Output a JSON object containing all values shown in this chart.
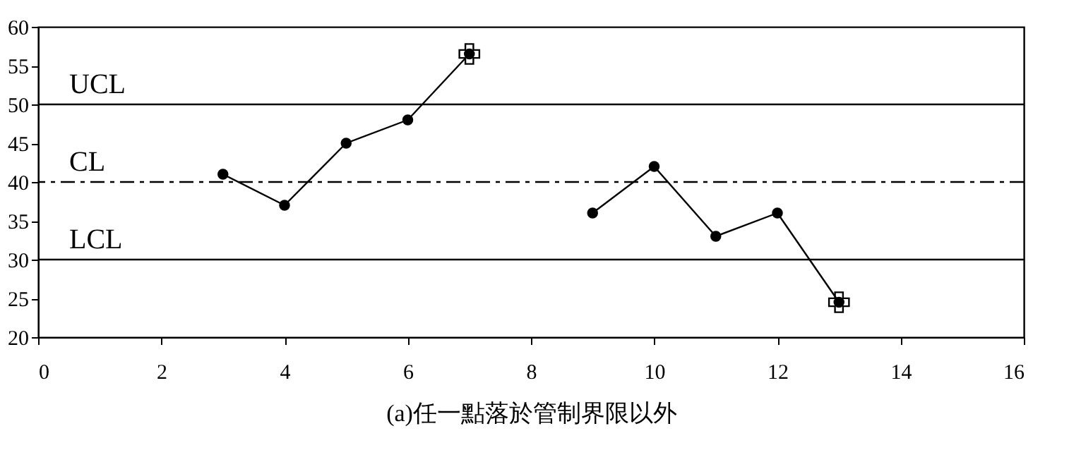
{
  "chart_data": {
    "type": "line",
    "xlabel": "(a)任一點落於管制界限以外",
    "x": [
      3,
      4,
      5,
      6,
      7,
      8,
      9,
      10,
      11,
      12,
      13
    ],
    "series": [
      {
        "color": "#000000",
        "marker": "circle",
        "values": [
          41,
          37,
          45,
          48,
          56.5,
          null,
          36,
          42,
          33,
          36,
          24.5
        ]
      },
      {
        "type": "scatter",
        "color": "#000000",
        "marker": "cross",
        "x": [
          7,
          13
        ],
        "values": [
          56.5,
          24.5
        ]
      }
    ],
    "xlim": [
      0,
      16
    ],
    "xticks": [
      0,
      2,
      4,
      6,
      8,
      10,
      12,
      14,
      16
    ],
    "ylim": [
      20,
      60
    ],
    "yticks": [
      20,
      25,
      30,
      35,
      40,
      45,
      50,
      55,
      60
    ],
    "ref_lines": [
      {
        "axis": "y",
        "value": 50,
        "label": "UCL",
        "line_style": "solid",
        "color": "#000000"
      },
      {
        "axis": "y",
        "value": 40,
        "label": "CL",
        "line_style": "dashdot",
        "color": "#000000"
      },
      {
        "axis": "y",
        "value": 30,
        "label": "LCL",
        "line_style": "solid",
        "color": "#000000"
      }
    ],
    "grid": false
  }
}
